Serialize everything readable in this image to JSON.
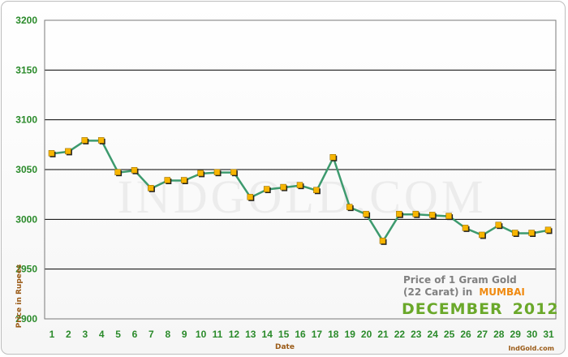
{
  "chart_data": {
    "type": "line",
    "xlabel": "Date",
    "ylabel": "Price in Rupees",
    "ylim": [
      2900,
      3200
    ],
    "yticks": [
      2900,
      2950,
      3000,
      3050,
      3100,
      3150,
      3200
    ],
    "x": [
      1,
      2,
      3,
      4,
      5,
      6,
      7,
      8,
      9,
      10,
      11,
      12,
      13,
      14,
      15,
      16,
      17,
      18,
      19,
      20,
      21,
      22,
      23,
      24,
      25,
      26,
      27,
      28,
      29,
      30,
      31
    ],
    "values": [
      3066,
      3068,
      3079,
      3079,
      3047,
      3049,
      3031,
      3039,
      3039,
      3046,
      3047,
      3047,
      3022,
      3030,
      3032,
      3034,
      3029,
      3062,
      3012,
      3005,
      2978,
      3005,
      3005,
      3004,
      3003,
      2991,
      2984,
      2994,
      2986,
      2986,
      2989
    ],
    "grid": true,
    "line_color": "#3d9a6e",
    "marker_color": "#f7b500"
  },
  "caption": {
    "line1": "Price of 1 Gram Gold",
    "line2_prefix": "(22 Carat) in",
    "city": "MUMBAI",
    "month": "DECEMBER",
    "year": "2012"
  },
  "watermark": "INDGOLD.COM",
  "brand": "IndGold.com"
}
